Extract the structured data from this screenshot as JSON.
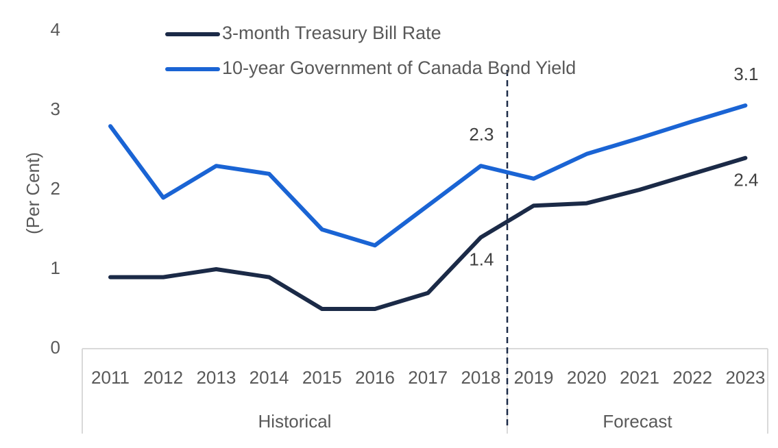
{
  "chart_data": {
    "type": "line",
    "title": "",
    "xlabel": "",
    "ylabel": "(Per Cent)",
    "ylim": [
      0,
      4
    ],
    "y_ticks": [
      "0",
      "1",
      "2",
      "3",
      "4"
    ],
    "categories": [
      "2011",
      "2012",
      "2013",
      "2014",
      "2015",
      "2016",
      "2017",
      "2018",
      "2019",
      "2020",
      "2021",
      "2022",
      "2023"
    ],
    "groups": [
      {
        "label": "Historical",
        "from": "2011",
        "to": "2018"
      },
      {
        "label": "Forecast",
        "from": "2019",
        "to": "2023"
      }
    ],
    "divider_between": [
      "2018",
      "2019"
    ],
    "grid": false,
    "legend_position": "top",
    "series": [
      {
        "name": "3-month Treasury Bill Rate",
        "color": "#1b2a47",
        "values": [
          0.9,
          0.9,
          1.0,
          0.9,
          0.5,
          0.5,
          0.7,
          1.4,
          1.8,
          1.83,
          2.0,
          2.2,
          2.4
        ]
      },
      {
        "name": "10-year Government of Canada Bond Yield",
        "color": "#1a64d4",
        "values": [
          2.8,
          1.9,
          2.3,
          2.2,
          1.5,
          1.3,
          1.8,
          2.3,
          2.14,
          2.45,
          2.65,
          2.86,
          3.06
        ]
      }
    ],
    "annotations": [
      {
        "series": 0,
        "category": "2018",
        "text": "1.4",
        "position": "below"
      },
      {
        "series": 1,
        "category": "2018",
        "text": "2.3",
        "position": "above"
      },
      {
        "series": 0,
        "category": "2023",
        "text": "2.4",
        "position": "below"
      },
      {
        "series": 1,
        "category": "2023",
        "text": "3.1",
        "position": "above"
      }
    ]
  }
}
